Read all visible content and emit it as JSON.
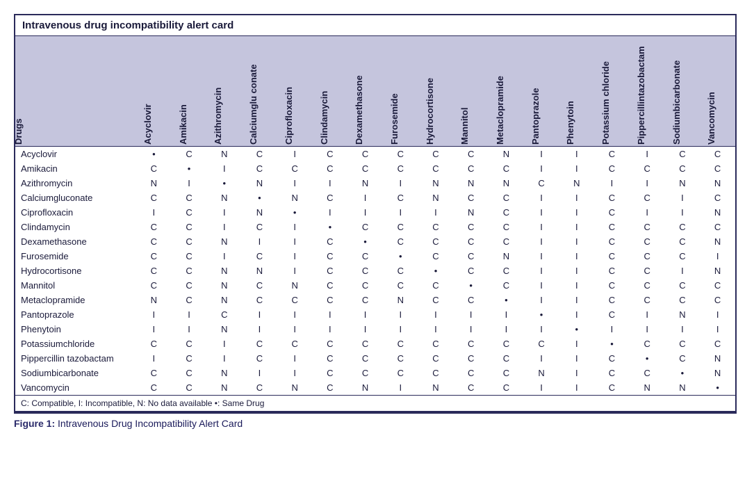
{
  "card": {
    "title": "Intravenous drug incompatibility alert card",
    "header_bg": "#c5c5dd",
    "border_color": "#2a2a5a",
    "rowlabel_header": "Drugs",
    "legend": "C: Compatible, I: Incompatible, N: No data available •: Same Drug",
    "same_drug_symbol": "•",
    "columns": [
      "Acyclovir",
      "Amikacin",
      "Azithromycin",
      "Calciumglu conate",
      "Ciprofloxacin",
      "Clindamycin",
      "Dexamethasone",
      "Furosemide",
      "Hydrocortisone",
      "Mannitol",
      "Metaclopramide",
      "Pantoprazole",
      "Phenytoin",
      "Potassium chloride",
      "Pippercillintazobactam",
      "Sodiumbicarbonate",
      "Vancomycin"
    ],
    "rows": [
      {
        "name": "Acyclovir",
        "cells": [
          "•",
          "C",
          "N",
          "C",
          "I",
          "C",
          "C",
          "C",
          "C",
          "C",
          "N",
          "I",
          "I",
          "C",
          "I",
          "C",
          "C"
        ]
      },
      {
        "name": "Amikacin",
        "cells": [
          "C",
          "•",
          "I",
          "C",
          "C",
          "C",
          "C",
          "C",
          "C",
          "C",
          "C",
          "I",
          "I",
          "C",
          "C",
          "C",
          "C"
        ]
      },
      {
        "name": "Azithromycin",
        "cells": [
          "N",
          "I",
          "•",
          "N",
          "I",
          "I",
          "N",
          "I",
          "N",
          "N",
          "N",
          "C",
          "N",
          "I",
          "I",
          "N",
          "N"
        ]
      },
      {
        "name": "Calciumgluconate",
        "cells": [
          "C",
          "C",
          "N",
          "•",
          "N",
          "C",
          "I",
          "C",
          "N",
          "C",
          "C",
          "I",
          "I",
          "C",
          "C",
          "I",
          "C"
        ]
      },
      {
        "name": "Ciprofloxacin",
        "cells": [
          "I",
          "C",
          "I",
          "N",
          "•",
          "I",
          "I",
          "I",
          "I",
          "N",
          "C",
          "I",
          "I",
          "C",
          "I",
          "I",
          "N"
        ]
      },
      {
        "name": "Clindamycin",
        "cells": [
          "C",
          "C",
          "I",
          "C",
          "I",
          "•",
          "C",
          "C",
          "C",
          "C",
          "C",
          "I",
          "I",
          "C",
          "C",
          "C",
          "C"
        ]
      },
      {
        "name": "Dexamethasone",
        "cells": [
          "C",
          "C",
          "N",
          "I",
          "I",
          "C",
          "•",
          "C",
          "C",
          "C",
          "C",
          "I",
          "I",
          "C",
          "C",
          "C",
          "N"
        ]
      },
      {
        "name": "Furosemide",
        "cells": [
          "C",
          "C",
          "I",
          "C",
          "I",
          "C",
          "C",
          "•",
          "C",
          "C",
          "N",
          "I",
          "I",
          "C",
          "C",
          "C",
          "I"
        ]
      },
      {
        "name": "Hydrocortisone",
        "cells": [
          "C",
          "C",
          "N",
          "N",
          "I",
          "C",
          "C",
          "C",
          "•",
          "C",
          "C",
          "I",
          "I",
          "C",
          "C",
          "I",
          "N"
        ]
      },
      {
        "name": "Mannitol",
        "cells": [
          "C",
          "C",
          "N",
          "C",
          "N",
          "C",
          "C",
          "C",
          "C",
          "•",
          "C",
          "I",
          "I",
          "C",
          "C",
          "C",
          "C"
        ]
      },
      {
        "name": "Metaclopramide",
        "cells": [
          "N",
          "C",
          "N",
          "C",
          "C",
          "C",
          "C",
          "N",
          "C",
          "C",
          "•",
          "I",
          "I",
          "C",
          "C",
          "C",
          "C"
        ]
      },
      {
        "name": "Pantoprazole",
        "cells": [
          "I",
          "I",
          "C",
          "I",
          "I",
          "I",
          "I",
          "I",
          "I",
          "I",
          "I",
          "•",
          "I",
          "C",
          "I",
          "N",
          "I"
        ]
      },
      {
        "name": "Phenytoin",
        "cells": [
          "I",
          "I",
          "N",
          "I",
          "I",
          "I",
          "I",
          "I",
          "I",
          "I",
          "I",
          "I",
          "•",
          "I",
          "I",
          "I",
          "I"
        ]
      },
      {
        "name": "Potassiumchloride",
        "cells": [
          "C",
          "C",
          "I",
          "C",
          "C",
          "C",
          "C",
          "C",
          "C",
          "C",
          "C",
          "C",
          "I",
          "•",
          "C",
          "C",
          "C"
        ]
      },
      {
        "name": "Pippercillin tazobactam",
        "cells": [
          "I",
          "C",
          "I",
          "C",
          "I",
          "C",
          "C",
          "C",
          "C",
          "C",
          "C",
          "I",
          "I",
          "C",
          "•",
          "C",
          "N"
        ]
      },
      {
        "name": "Sodiumbicarbonate",
        "cells": [
          "C",
          "C",
          "N",
          "I",
          "I",
          "C",
          "C",
          "C",
          "C",
          "C",
          "C",
          "N",
          "I",
          "C",
          "C",
          "•",
          "N"
        ]
      },
      {
        "name": "Vancomycin",
        "cells": [
          "C",
          "C",
          "N",
          "C",
          "N",
          "C",
          "N",
          "I",
          "N",
          "C",
          "C",
          "I",
          "I",
          "C",
          "N",
          "N",
          "•"
        ]
      }
    ]
  },
  "caption": {
    "label": "Figure 1:",
    "text": "Intravenous Drug Incompatibility Alert Card"
  }
}
